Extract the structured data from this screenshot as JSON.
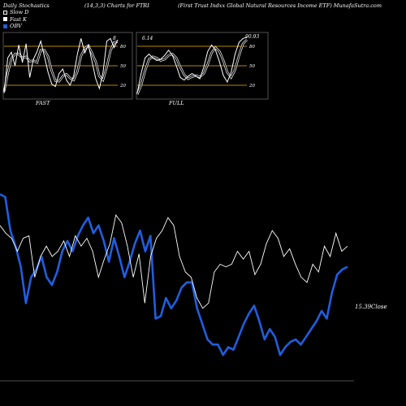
{
  "header": {
    "title_left": "Daily Stochastics",
    "title_mid": "(14,3,3) Charts for FTRI",
    "title_right": "(First Trust Indxx Global Natural Resources Income  ETF) MunafaSutra.com"
  },
  "legend": [
    {
      "label": "Slow  D",
      "color": "#000000"
    },
    {
      "label": "Fast K",
      "color": "#ffffff"
    },
    {
      "label": "OBV",
      "color": "#1f5fe0"
    }
  ],
  "colors": {
    "background": "#000000",
    "obv": "#1f5fe0",
    "price": "#ffffff",
    "gridline": "#b8860b"
  },
  "chart_data": [
    {
      "type": "line",
      "title": "FAST",
      "ytick_labels": [
        "80",
        "50",
        "20"
      ],
      "ylim": [
        0,
        100
      ],
      "series": [
        {
          "name": "Fast K",
          "values": [
            8,
            62,
            71,
            50,
            82,
            55,
            84,
            32,
            60,
            72,
            88,
            64,
            40,
            22,
            18,
            38,
            45,
            28,
            20,
            35,
            68,
            92,
            70,
            82,
            56,
            30,
            15,
            40,
            88,
            92,
            78,
            90
          ]
        },
        {
          "name": "Slow  D",
          "values": [
            10,
            38,
            61,
            68,
            68,
            62,
            64,
            57,
            58,
            55,
            74,
            74,
            64,
            42,
            27,
            26,
            34,
            37,
            31,
            28,
            41,
            65,
            77,
            81,
            69,
            56,
            34,
            28,
            48,
            73,
            86,
            87
          ]
        }
      ],
      "value_label": "8"
    },
    {
      "type": "line",
      "title": "FULL",
      "ytick_labels": [
        "80",
        "50",
        "20"
      ],
      "ylim": [
        0,
        100
      ],
      "series": [
        {
          "name": "Fast K",
          "values": [
            8,
            38,
            62,
            68,
            62,
            58,
            60,
            66,
            74,
            66,
            50,
            32,
            28,
            34,
            38,
            34,
            30,
            48,
            72,
            82,
            74,
            56,
            35,
            25,
            40,
            68,
            86,
            92,
            94
          ]
        },
        {
          "name": "Slow  D",
          "values": [
            6,
            20,
            42,
            60,
            64,
            62,
            58,
            60,
            66,
            68,
            62,
            48,
            36,
            30,
            33,
            35,
            33,
            38,
            52,
            70,
            78,
            72,
            58,
            40,
            32,
            44,
            66,
            84,
            90
          ]
        }
      ],
      "left_label": "6.14",
      "value_label": "90.93"
    },
    {
      "type": "line",
      "series": [
        {
          "name": "OBV",
          "values": [
            72,
            71,
            58,
            52,
            44,
            30,
            40,
            43,
            48,
            40,
            37,
            42,
            50,
            54,
            50,
            56,
            60,
            63,
            57,
            60,
            54,
            46,
            55,
            48,
            40,
            46,
            53,
            58,
            50,
            56,
            24,
            25,
            32,
            28,
            31,
            36,
            38,
            38,
            28,
            22,
            16,
            14,
            14,
            10,
            13,
            12,
            17,
            22,
            26,
            29,
            23,
            16,
            20,
            17,
            10,
            13,
            15,
            16,
            14,
            17,
            20,
            23,
            27,
            24,
            34,
            41,
            43,
            44
          ]
        },
        {
          "name": "Close",
          "values": [
            60,
            57,
            55,
            50,
            55,
            56,
            40,
            48,
            52,
            48,
            50,
            54,
            48,
            56,
            52,
            55,
            50,
            40,
            47,
            53,
            64,
            61,
            52,
            40,
            49,
            30,
            48,
            55,
            58,
            63,
            60,
            48,
            42,
            40,
            32,
            28,
            30,
            42,
            45,
            44,
            45,
            50,
            47,
            50,
            41,
            45,
            53,
            58,
            55,
            48,
            51,
            45,
            40,
            38,
            45,
            42,
            52,
            48,
            57,
            50,
            52
          ]
        }
      ],
      "close_label": "15.39",
      "close_name": "Close"
    }
  ]
}
